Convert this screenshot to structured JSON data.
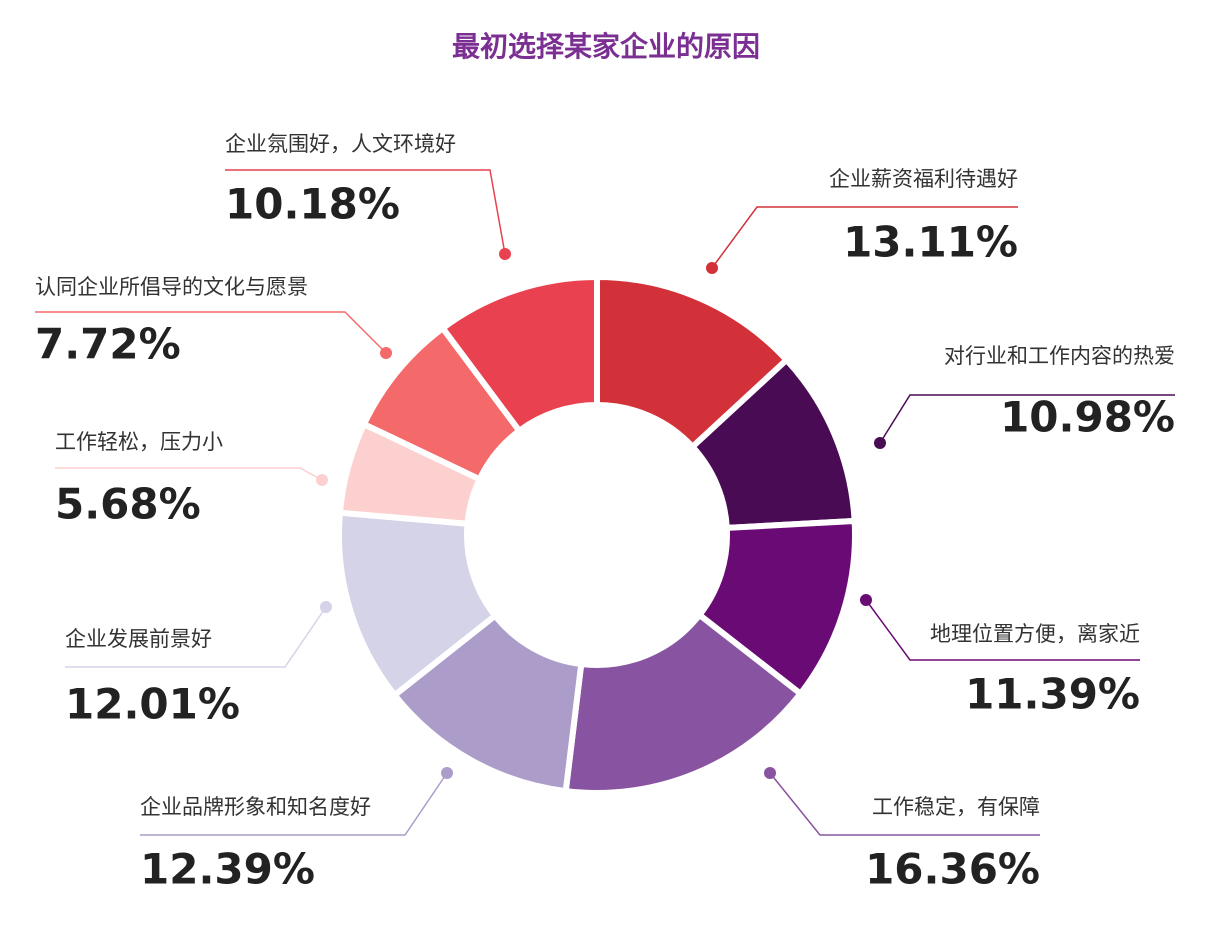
{
  "chart_data": {
    "type": "donut",
    "title": "最初选择某家企业的原因",
    "categories": [
      "企业薪资福利待遇好",
      "对行业和工作内容的热爱",
      "地理位置方便，离家近",
      "工作稳定，有保障",
      "企业品牌形象和知名度好",
      "企业发展前景好",
      "工作轻松，压力小",
      "认同企业所倡导的文化与愿景",
      "企业氛围好，人文环境好"
    ],
    "values": [
      13.11,
      10.98,
      11.39,
      16.36,
      12.39,
      12.01,
      5.68,
      7.72,
      10.18
    ],
    "value_labels": [
      "13.11%",
      "10.98%",
      "11.39%",
      "16.36%",
      "12.39%",
      "12.01%",
      "5.68%",
      "7.72%",
      "10.18%"
    ],
    "colors": [
      "#d3313a",
      "#4a0b55",
      "#6a0a74",
      "#8853a0",
      "#ab9cc9",
      "#d5d3e7",
      "#fdd0d0",
      "#f46a6b",
      "#e9414f"
    ]
  }
}
